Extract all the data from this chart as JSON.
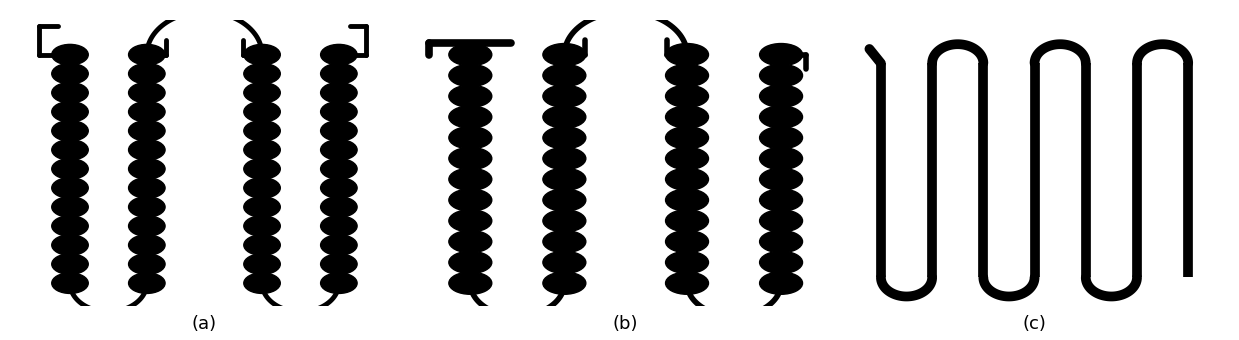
{
  "bg_color": "#ffffff",
  "fg_color": "#000000",
  "labels": [
    "(a)",
    "(b)",
    "(c)"
  ],
  "label_fontsize": 13,
  "fig_width": 12.39,
  "fig_height": 3.4
}
